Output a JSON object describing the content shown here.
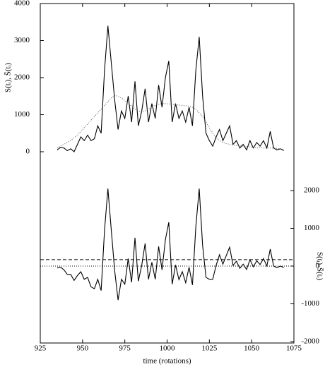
{
  "chart_data": [
    {
      "type": "line",
      "ylabel": "S(tᵢ), S̄(tᵢ)",
      "xlim": [
        925,
        1075
      ],
      "ylim": [
        0,
        4000
      ],
      "yticks": [
        0,
        1000,
        2000,
        3000,
        4000
      ],
      "yaxis": "left",
      "x": [
        935,
        937,
        939,
        941,
        943,
        945,
        947,
        949,
        951,
        953,
        955,
        957,
        959,
        961,
        963,
        965,
        967,
        969,
        971,
        973,
        975,
        977,
        979,
        981,
        983,
        985,
        987,
        989,
        991,
        993,
        995,
        997,
        999,
        1001,
        1003,
        1005,
        1007,
        1009,
        1011,
        1013,
        1015,
        1017,
        1019,
        1021,
        1023,
        1025,
        1027,
        1029,
        1031,
        1033,
        1035,
        1037,
        1039,
        1041,
        1043,
        1045,
        1047,
        1049,
        1051,
        1053,
        1055,
        1057,
        1059,
        1061,
        1063,
        1065,
        1067,
        1069
      ],
      "series": [
        {
          "color": "#000000",
          "style": "solid",
          "values": [
            50,
            120,
            100,
            30,
            80,
            0,
            200,
            400,
            300,
            450,
            300,
            350,
            700,
            500,
            2200,
            3400,
            2400,
            1400,
            600,
            1100,
            900,
            1500,
            800,
            1900,
            700,
            1100,
            1700,
            800,
            1300,
            900,
            1800,
            1200,
            2000,
            2450,
            800,
            1300,
            900,
            1100,
            800,
            1200,
            700,
            2200,
            3100,
            1500,
            500,
            300,
            150,
            400,
            600,
            300,
            500,
            700,
            200,
            300,
            100,
            200,
            50,
            300,
            100,
            250,
            150,
            300,
            100,
            550,
            100,
            50,
            80,
            30
          ]
        },
        {
          "color": "#555555",
          "style": "dotted",
          "values": [
            100,
            150,
            200,
            250,
            300,
            380,
            450,
            550,
            650,
            750,
            850,
            950,
            1050,
            1150,
            1250,
            1350,
            1450,
            1520,
            1500,
            1450,
            1380,
            1300,
            1230,
            1150,
            1100,
            1080,
            1100,
            1150,
            1200,
            1250,
            1280,
            1300,
            1300,
            1290,
            1280,
            1270,
            1260,
            1250,
            1240,
            1230,
            1200,
            1150,
            1050,
            950,
            800,
            650,
            500,
            380,
            300,
            250,
            220,
            200,
            180,
            170,
            160,
            150,
            140,
            130,
            120,
            110,
            110,
            100,
            100,
            100,
            100,
            90,
            80,
            70
          ]
        }
      ]
    },
    {
      "type": "line",
      "ylabel": "S(tᵢ)-S̄(tᵢ)",
      "xlabel": "time (rotations)",
      "xlim": [
        925,
        1075
      ],
      "xticks": [
        925,
        950,
        975,
        1000,
        1025,
        1050,
        1075
      ],
      "ylim": [
        -2000,
        2000
      ],
      "yticks": [
        -2000,
        -1000,
        0,
        1000,
        2000
      ],
      "yaxis": "right",
      "reference_lines": [
        {
          "value": 170,
          "style": "dashed"
        },
        {
          "value": 0,
          "style": "dotted"
        }
      ],
      "x": [
        935,
        937,
        939,
        941,
        943,
        945,
        947,
        949,
        951,
        953,
        955,
        957,
        959,
        961,
        963,
        965,
        967,
        969,
        971,
        973,
        975,
        977,
        979,
        981,
        983,
        985,
        987,
        989,
        991,
        993,
        995,
        997,
        999,
        1001,
        1003,
        1005,
        1007,
        1009,
        1011,
        1013,
        1015,
        1017,
        1019,
        1021,
        1023,
        1025,
        1027,
        1029,
        1031,
        1033,
        1035,
        1037,
        1039,
        1041,
        1043,
        1045,
        1047,
        1049,
        1051,
        1053,
        1055,
        1057,
        1059,
        1061,
        1063,
        1065,
        1067,
        1069
      ],
      "series": [
        {
          "color": "#000000",
          "style": "solid",
          "values": [
            -50,
            -30,
            -100,
            -220,
            -220,
            -380,
            -250,
            -150,
            -350,
            -300,
            -550,
            -600,
            -350,
            -650,
            950,
            2050,
            950,
            -120,
            -900,
            -350,
            -480,
            200,
            -430,
            750,
            -400,
            20,
            600,
            -350,
            100,
            -350,
            520,
            -100,
            700,
            1160,
            -480,
            30,
            -360,
            -150,
            -440,
            -30,
            -500,
            1050,
            2050,
            550,
            -300,
            -350,
            -350,
            20,
            300,
            50,
            280,
            500,
            20,
            130,
            -60,
            50,
            -90,
            170,
            -20,
            140,
            40,
            200,
            0,
            450,
            0,
            -40,
            0,
            -40
          ]
        }
      ]
    }
  ]
}
